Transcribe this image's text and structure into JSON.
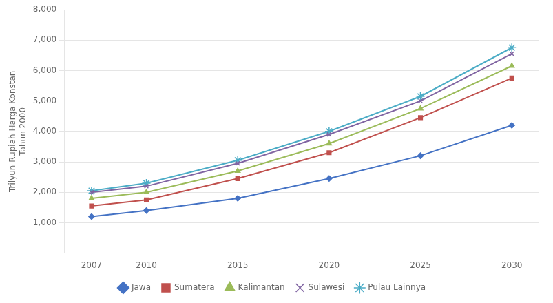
{
  "chart_data": {
    "type": "line",
    "ylabel": [
      "Trilyun Rupiah Harga Konstan",
      "Tahun 2000"
    ],
    "x": [
      2007,
      2010,
      2015,
      2020,
      2025,
      2030
    ],
    "series": [
      {
        "name": "Jawa",
        "color": "#4472C4",
        "marker": "diamond",
        "values": [
          1200,
          1400,
          1800,
          2450,
          3200,
          4200
        ]
      },
      {
        "name": "Sumatera",
        "color": "#C0504D",
        "marker": "square",
        "values": [
          1550,
          1750,
          2450,
          3300,
          4450,
          5750
        ]
      },
      {
        "name": "Kalimantan",
        "color": "#9BBB59",
        "marker": "triangle",
        "values": [
          1800,
          2000,
          2700,
          3600,
          4750,
          6150
        ]
      },
      {
        "name": "Sulawesi",
        "color": "#8064A2",
        "marker": "x",
        "values": [
          2000,
          2200,
          2950,
          3900,
          5000,
          6550
        ]
      },
      {
        "name": "Pulau Lainnya",
        "color": "#4BACC6",
        "marker": "star",
        "values": [
          2050,
          2300,
          3050,
          4000,
          5150,
          6750
        ]
      }
    ],
    "xlim": [
      2005.5,
      2031.5
    ],
    "xticks": [
      2007,
      2010,
      2015,
      2020,
      2025,
      2030
    ],
    "ylim": [
      0,
      8000
    ],
    "yticks": [
      {
        "value": 0,
        "label": "-"
      },
      {
        "value": 1000,
        "label": "1,000"
      },
      {
        "value": 2000,
        "label": "2,000"
      },
      {
        "value": 3000,
        "label": "3,000"
      },
      {
        "value": 4000,
        "label": "4,000"
      },
      {
        "value": 5000,
        "label": "5,000"
      },
      {
        "value": 6000,
        "label": "6,000"
      },
      {
        "value": 7000,
        "label": "7,000"
      },
      {
        "value": 8000,
        "label": "8,000"
      }
    ],
    "grid": "y",
    "legend": "bottom"
  }
}
